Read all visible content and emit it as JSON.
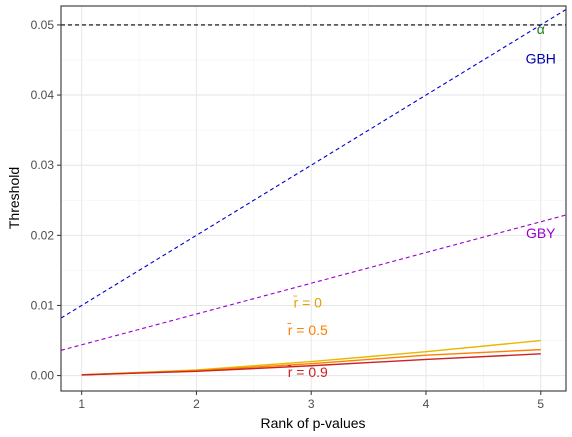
{
  "chart_data": {
    "type": "line",
    "title": "",
    "xlabel": "Rank of p-values",
    "ylabel": "Threshold",
    "xlim": [
      0.82,
      5.22
    ],
    "ylim": [
      -0.0022,
      0.0527
    ],
    "x_ticks": [
      1,
      2,
      3,
      4,
      5
    ],
    "y_ticks": [
      0.0,
      0.01,
      0.02,
      0.03,
      0.04,
      0.05
    ],
    "x_tick_labels": [
      "1",
      "2",
      "3",
      "4",
      "5"
    ],
    "y_tick_labels": [
      "0.00",
      "0.01",
      "0.02",
      "0.03",
      "0.04",
      "0.05"
    ],
    "grid": true,
    "legend": "none",
    "hlines": [
      {
        "y": 0.05,
        "color": "#000000",
        "dash": true
      }
    ],
    "series": [
      {
        "x": [
          0.82,
          5.22
        ],
        "y": [
          0.0082,
          0.0522
        ],
        "color": "#0000cc",
        "dash": true
      },
      {
        "x": [
          0.82,
          5.22
        ],
        "y": [
          0.0036,
          0.0229
        ],
        "color": "#9900cc",
        "dash": true
      },
      {
        "x": [
          1,
          2,
          3,
          4,
          5
        ],
        "y": [
          0.0001,
          0.0008,
          0.002,
          0.0034,
          0.005
        ],
        "color": "#e6b800",
        "dash": false
      },
      {
        "x": [
          1,
          2,
          3,
          4,
          5
        ],
        "y": [
          0.0001,
          0.0007,
          0.0017,
          0.0029,
          0.0037
        ],
        "color": "#ff7f00",
        "dash": false
      },
      {
        "x": [
          1,
          2,
          3,
          4,
          5
        ],
        "y": [
          0.0001,
          0.0006,
          0.0014,
          0.0023,
          0.0031
        ],
        "color": "#cc2222",
        "dash": false
      }
    ],
    "annotations": [
      {
        "text": "α",
        "x": 5.0,
        "y": 0.0487,
        "color": "#1a7a1a"
      },
      {
        "text": "GBH",
        "x": 5.0,
        "y": 0.0445,
        "color": "#0000aa"
      },
      {
        "text": "GBY",
        "x": 5.0,
        "y": 0.0196,
        "color": "#9900cc"
      },
      {
        "text": "r̄ = 0",
        "x": 2.97,
        "y": 0.0097,
        "color": "#e6a000"
      },
      {
        "text": "r̄ = 0.5",
        "x": 2.97,
        "y": 0.0058,
        "color": "#ff7f00"
      },
      {
        "text": "r̄ = 0.9",
        "x": 2.97,
        "y": -0.0002,
        "color": "#cc2222"
      }
    ]
  }
}
